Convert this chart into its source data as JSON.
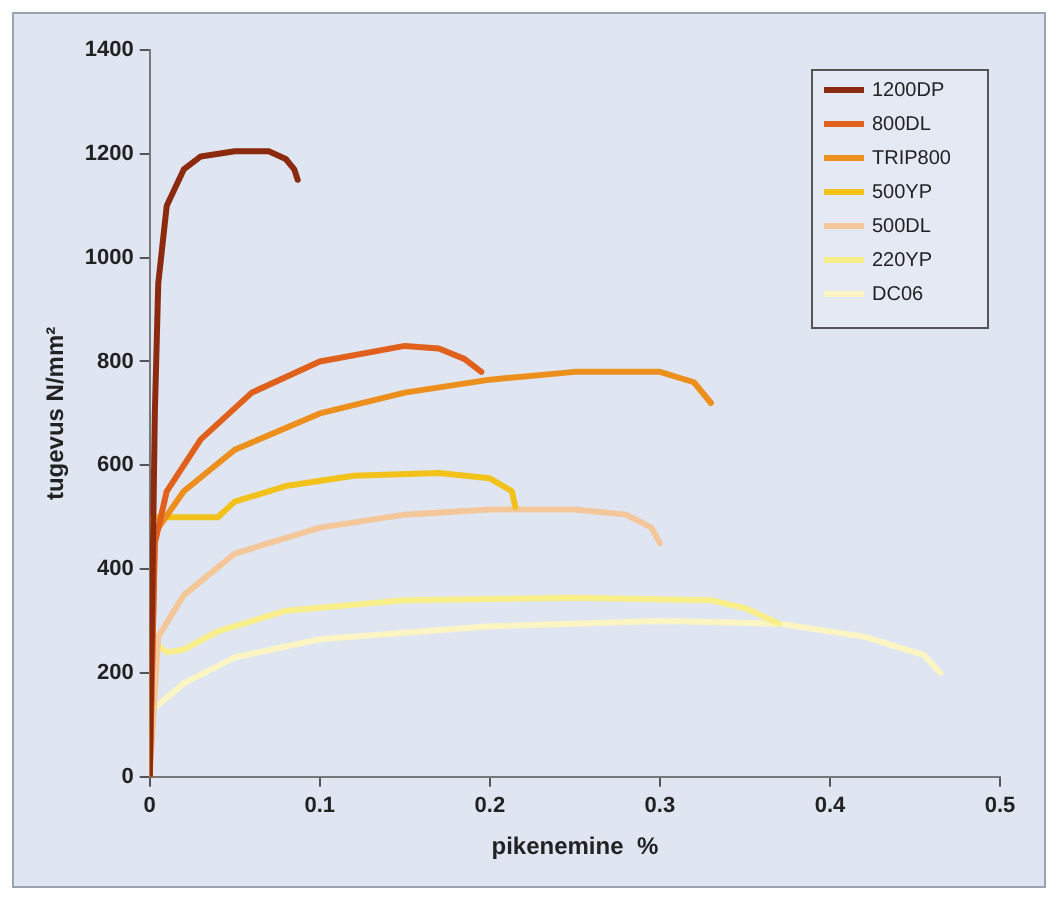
{
  "chart_data": {
    "type": "line",
    "xlabel": "pikenemine  %",
    "ylabel": "tugevus N/mm²",
    "xlim": [
      0,
      0.5
    ],
    "xticks": [
      0,
      0.1,
      0.2,
      0.3,
      0.4,
      0.5
    ],
    "ylim": [
      0,
      1400
    ],
    "yticks": [
      0,
      200,
      400,
      600,
      800,
      1000,
      1200,
      1400
    ],
    "grid": false,
    "legend": "top right",
    "marker": "none",
    "line_style": "solid",
    "series": [
      {
        "name": "1200DP",
        "color": "#8b2a0e",
        "x": [
          0,
          0.003,
          0.005,
          0.01,
          0.02,
          0.03,
          0.05,
          0.07,
          0.08,
          0.085,
          0.087
        ],
        "values": [
          0,
          700,
          950,
          1100,
          1170,
          1195,
          1205,
          1205,
          1190,
          1170,
          1150
        ]
      },
      {
        "name": "800DL",
        "color": "#e0601c",
        "x": [
          0,
          0.003,
          0.01,
          0.03,
          0.06,
          0.1,
          0.15,
          0.17,
          0.185,
          0.195
        ],
        "values": [
          0,
          450,
          550,
          650,
          740,
          800,
          830,
          825,
          805,
          780
        ]
      },
      {
        "name": "TRIP800",
        "color": "#ec8f1c",
        "x": [
          0,
          0.003,
          0.02,
          0.05,
          0.1,
          0.15,
          0.2,
          0.25,
          0.3,
          0.32,
          0.33
        ],
        "values": [
          0,
          470,
          550,
          630,
          700,
          740,
          765,
          780,
          780,
          760,
          720
        ]
      },
      {
        "name": "500YP",
        "color": "#f2c11a",
        "x": [
          0,
          0.002,
          0.01,
          0.04,
          0.05,
          0.08,
          0.12,
          0.17,
          0.2,
          0.213,
          0.215
        ],
        "values": [
          0,
          500,
          500,
          500,
          530,
          560,
          580,
          585,
          575,
          550,
          520
        ]
      },
      {
        "name": "500DL",
        "color": "#f4c79a",
        "x": [
          0,
          0.005,
          0.02,
          0.05,
          0.1,
          0.15,
          0.2,
          0.25,
          0.28,
          0.295,
          0.3
        ],
        "values": [
          0,
          270,
          350,
          430,
          480,
          505,
          515,
          515,
          505,
          480,
          450
        ]
      },
      {
        "name": "220YP",
        "color": "#f8ef8a",
        "x": [
          0,
          0.002,
          0.01,
          0.02,
          0.04,
          0.08,
          0.15,
          0.25,
          0.33,
          0.35,
          0.37
        ],
        "values": [
          0,
          260,
          240,
          245,
          280,
          320,
          340,
          345,
          340,
          325,
          295
        ]
      },
      {
        "name": "DC06",
        "color": "#fbf5c4",
        "x": [
          0,
          0.002,
          0.02,
          0.05,
          0.1,
          0.2,
          0.3,
          0.37,
          0.42,
          0.455,
          0.465
        ],
        "values": [
          0,
          130,
          180,
          230,
          265,
          290,
          300,
          295,
          270,
          235,
          200
        ]
      }
    ]
  }
}
